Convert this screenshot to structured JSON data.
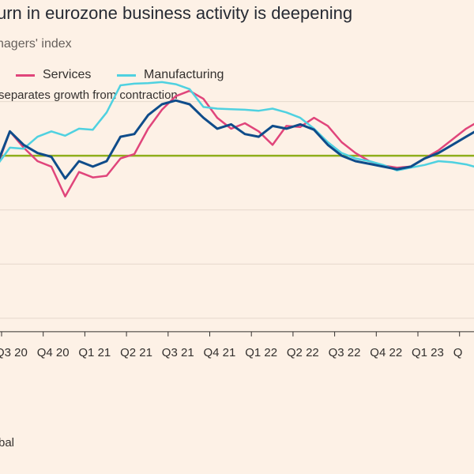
{
  "header": {
    "title": "urn in eurozone business activity is deepening",
    "subtitle": "nagers' index",
    "note": "separates growth from contraction",
    "source": "bal"
  },
  "legend": [
    {
      "label": "Services",
      "color": "#e0457b",
      "x": 20
    },
    {
      "label": "Manufacturing",
      "color": "#4fd1e0",
      "x": 148
    }
  ],
  "colors": {
    "services": "#e0457b",
    "manufacturing": "#4fd1e0",
    "composite": "#0f4c8a",
    "threshold": "#8fae1b",
    "grid": "#e5d8cc"
  },
  "chart_data": {
    "type": "line",
    "x_ticks": [
      "Q3 20",
      "Q4 20",
      "Q1 21",
      "Q2 21",
      "Q3 21",
      "Q4 21",
      "Q1 22",
      "Q2 22",
      "Q3 22",
      "Q4 22",
      "Q1 23",
      "Q"
    ],
    "threshold": 50,
    "ylim": [
      20,
      65
    ],
    "series": [
      {
        "name": "Services",
        "key": "services",
        "values": [
          47.5,
          54.5,
          51.5,
          49.0,
          48.0,
          42.5,
          47.0,
          46.0,
          46.3,
          49.5,
          50.3,
          55.0,
          58.5,
          61.0,
          62.0,
          60.5,
          57.0,
          55.0,
          56.0,
          54.5,
          52.0,
          55.5,
          55.3,
          57.0,
          55.5,
          52.5,
          50.5,
          49.0,
          48.2,
          47.8,
          48.0,
          49.5,
          51.0,
          53.0,
          55.0,
          56.5
        ]
      },
      {
        "name": "Manufacturing",
        "key": "manufacturing",
        "values": [
          48.0,
          51.5,
          51.3,
          53.5,
          54.5,
          53.7,
          55.0,
          54.8,
          58.0,
          63.0,
          63.3,
          63.4,
          63.6,
          63.2,
          62.3,
          59.0,
          58.7,
          58.6,
          58.5,
          58.3,
          58.7,
          58.0,
          57.0,
          55.0,
          52.5,
          50.5,
          49.5,
          49.0,
          48.3,
          47.3,
          47.8,
          48.3,
          49.0,
          48.8,
          48.4,
          47.7
        ]
      },
      {
        "name": "",
        "key": "composite",
        "values": [
          48.0,
          54.5,
          52.0,
          50.5,
          49.8,
          45.8,
          49.0,
          48.0,
          49.0,
          53.5,
          54.0,
          57.5,
          59.5,
          60.2,
          59.5,
          57.0,
          55.0,
          55.8,
          54.0,
          53.5,
          55.5,
          55.0,
          55.8,
          54.8,
          52.0,
          50.0,
          49.0,
          48.5,
          48.0,
          47.5,
          48.0,
          49.5,
          50.5,
          52.0,
          53.5,
          55.0
        ]
      }
    ]
  }
}
